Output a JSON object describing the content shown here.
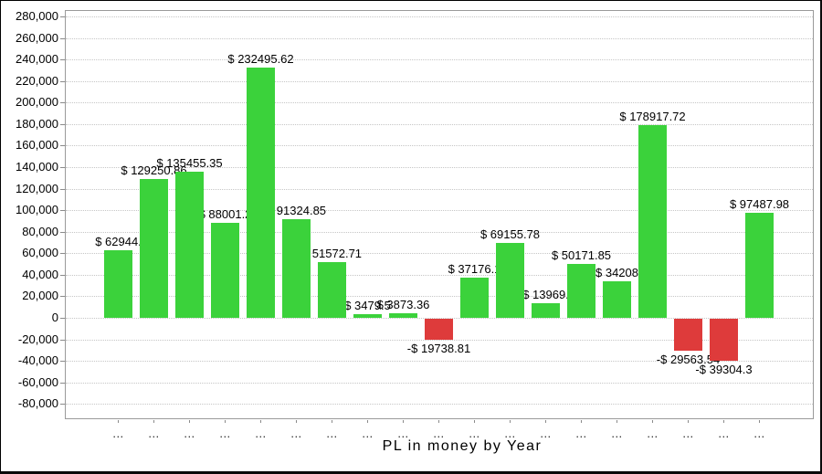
{
  "chart_data": {
    "type": "bar",
    "title": "PL in money by Year",
    "grid": "horizontal-dotted",
    "legend": "none",
    "ylim": [
      -95000,
      286000
    ],
    "y_axis": {
      "ticks": [
        {
          "value": 280000,
          "label": "280,000"
        },
        {
          "value": 260000,
          "label": "260,000"
        },
        {
          "value": 240000,
          "label": "240,000"
        },
        {
          "value": 220000,
          "label": "220,000"
        },
        {
          "value": 200000,
          "label": "200,000"
        },
        {
          "value": 180000,
          "label": "180,000"
        },
        {
          "value": 160000,
          "label": "160,000"
        },
        {
          "value": 140000,
          "label": "140,000"
        },
        {
          "value": 120000,
          "label": "120,000"
        },
        {
          "value": 100000,
          "label": "100,000"
        },
        {
          "value": 80000,
          "label": "80,000"
        },
        {
          "value": 60000,
          "label": "60,000"
        },
        {
          "value": 40000,
          "label": "40,000"
        },
        {
          "value": 20000,
          "label": "20,000"
        },
        {
          "value": 0,
          "label": "0"
        },
        {
          "value": -20000,
          "label": "-20,000"
        },
        {
          "value": -40000,
          "label": "-40,000"
        },
        {
          "value": -60000,
          "label": "-60,000"
        },
        {
          "value": -80000,
          "label": "-80,000"
        }
      ]
    },
    "colors": {
      "positive": "#3bd23b",
      "negative": "#de3b3b"
    },
    "bars": [
      {
        "x_label": "...",
        "value": 62944,
        "display": "$ 62944.",
        "color": "positive"
      },
      {
        "x_label": "...",
        "value": 129250.86,
        "display": "$ 129250.86",
        "color": "positive"
      },
      {
        "x_label": "...",
        "value": 135455.35,
        "display": "$ 135455.35",
        "color": "positive"
      },
      {
        "x_label": "...",
        "value": 88001.2,
        "display": "$ 88001.2",
        "color": "positive"
      },
      {
        "x_label": "...",
        "value": 232495.62,
        "display": "$ 232495.62",
        "color": "positive"
      },
      {
        "x_label": "...",
        "value": 91324.85,
        "display": "$ 91324.85",
        "color": "positive"
      },
      {
        "x_label": "...",
        "value": 51572.71,
        "display": "$ 51572.71",
        "color": "positive"
      },
      {
        "x_label": "...",
        "value": 3479.5,
        "display": "$ 3479.5",
        "color": "positive"
      },
      {
        "x_label": "...",
        "value": 3873.36,
        "display": "$ 3873.36",
        "color": "positive"
      },
      {
        "x_label": "...",
        "value": -19738.81,
        "display": "-$ 19738.81",
        "color": "negative"
      },
      {
        "x_label": "...",
        "value": 37176.1,
        "display": "$ 37176.1",
        "color": "positive"
      },
      {
        "x_label": "...",
        "value": 69155.78,
        "display": "$ 69155.78",
        "color": "positive"
      },
      {
        "x_label": "...",
        "value": 13969,
        "display": "$ 13969.",
        "color": "positive"
      },
      {
        "x_label": "...",
        "value": 50171.85,
        "display": "$ 50171.85",
        "color": "positive"
      },
      {
        "x_label": "...",
        "value": 34208,
        "display": "$ 34208",
        "color": "positive"
      },
      {
        "x_label": "...",
        "value": 178917.72,
        "display": "$ 178917.72",
        "color": "positive"
      },
      {
        "x_label": "...",
        "value": -29563.54,
        "display": "-$ 29563.54",
        "color": "negative"
      },
      {
        "x_label": "...",
        "value": -39304.3,
        "display": "-$ 39304.3",
        "color": "negative"
      },
      {
        "x_label": "...",
        "value": 97487.98,
        "display": "$ 97487.98",
        "color": "positive"
      }
    ]
  }
}
